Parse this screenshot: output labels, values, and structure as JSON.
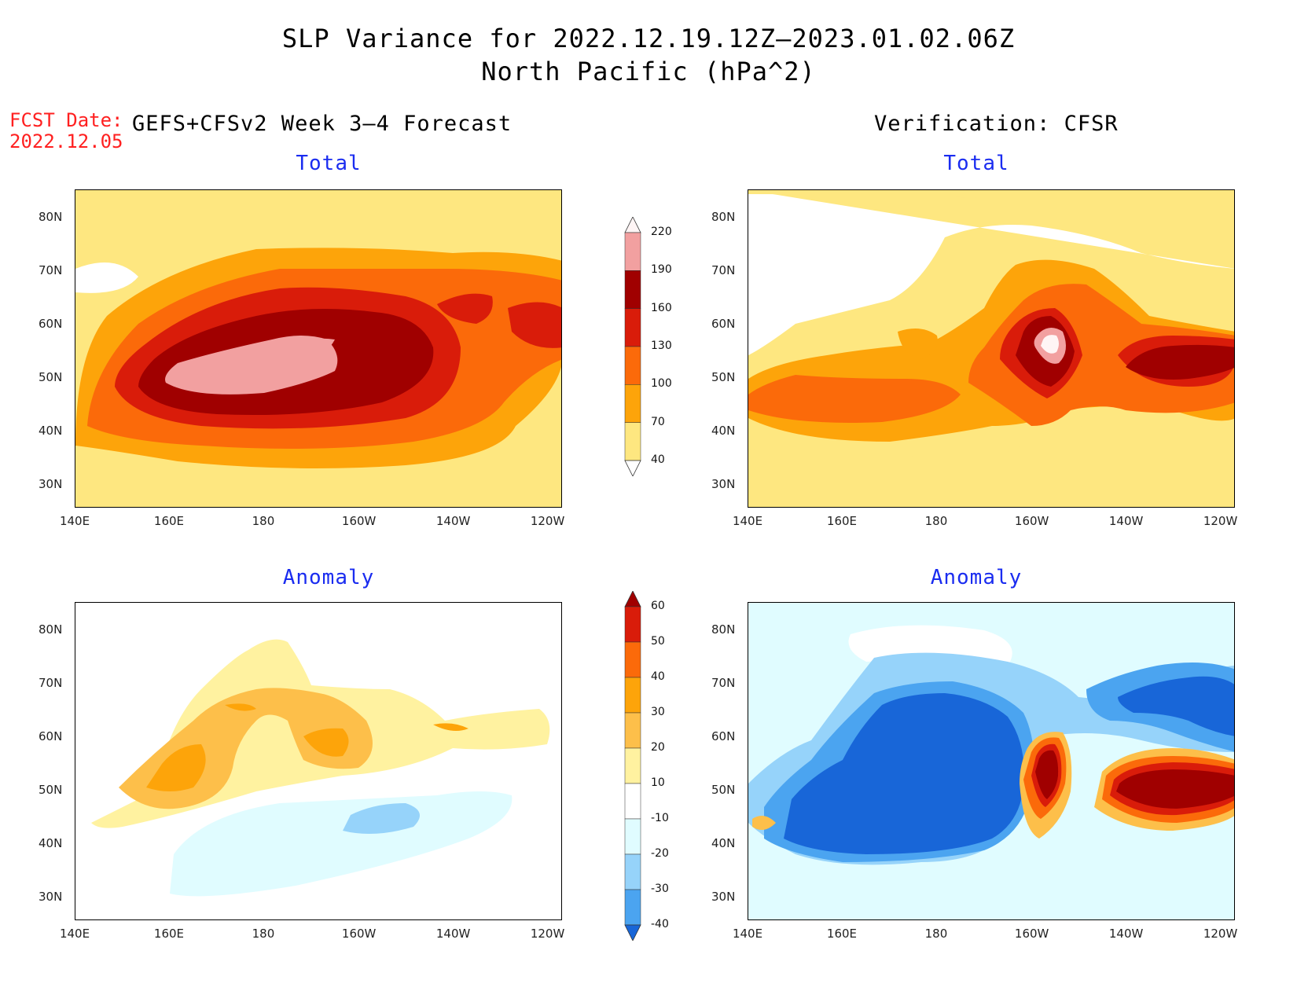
{
  "title": {
    "line1": "SLP Variance for 2022.12.19.12Z–2023.01.02.06Z",
    "line2": "North Pacific (hPa^2)"
  },
  "fcst_date": {
    "label": "FCST Date:",
    "value": "2022.12.05"
  },
  "columns": {
    "left": "GEFS+CFSv2 Week 3–4 Forecast",
    "right": "Verification: CFSR"
  },
  "panels": [
    {
      "id": "fcst-total",
      "title": "Total"
    },
    {
      "id": "verif-total",
      "title": "Total"
    },
    {
      "id": "fcst-anomaly",
      "title": "Anomaly"
    },
    {
      "id": "verif-anomaly",
      "title": "Anomaly"
    }
  ],
  "axes": {
    "x_ticks": [
      "140E",
      "160E",
      "180",
      "160W",
      "140W",
      "120W"
    ],
    "y_ticks": [
      "80N",
      "70N",
      "60N",
      "50N",
      "40N",
      "30N"
    ]
  },
  "colorbars": {
    "total": {
      "levels": [
        "220",
        "190",
        "160",
        "130",
        "100",
        "70",
        "40"
      ],
      "colors": [
        "#fff5f5",
        "#f2a0a0",
        "#a00000",
        "#d91c0a",
        "#fb6a0a",
        "#fda40a",
        "#fee780",
        "#ffffff"
      ]
    },
    "anomaly": {
      "levels": [
        "60",
        "50",
        "40",
        "30",
        "20",
        "10",
        "-10",
        "-20",
        "-30",
        "-40"
      ],
      "colors": [
        "#a00000",
        "#d91c0a",
        "#fb6a0a",
        "#fda40a",
        "#fdbf4a",
        "#fff2a0",
        "#ffffff",
        "#e0fcff",
        "#96d3fa",
        "#4ba4f0",
        "#1866d8"
      ]
    }
  }
}
